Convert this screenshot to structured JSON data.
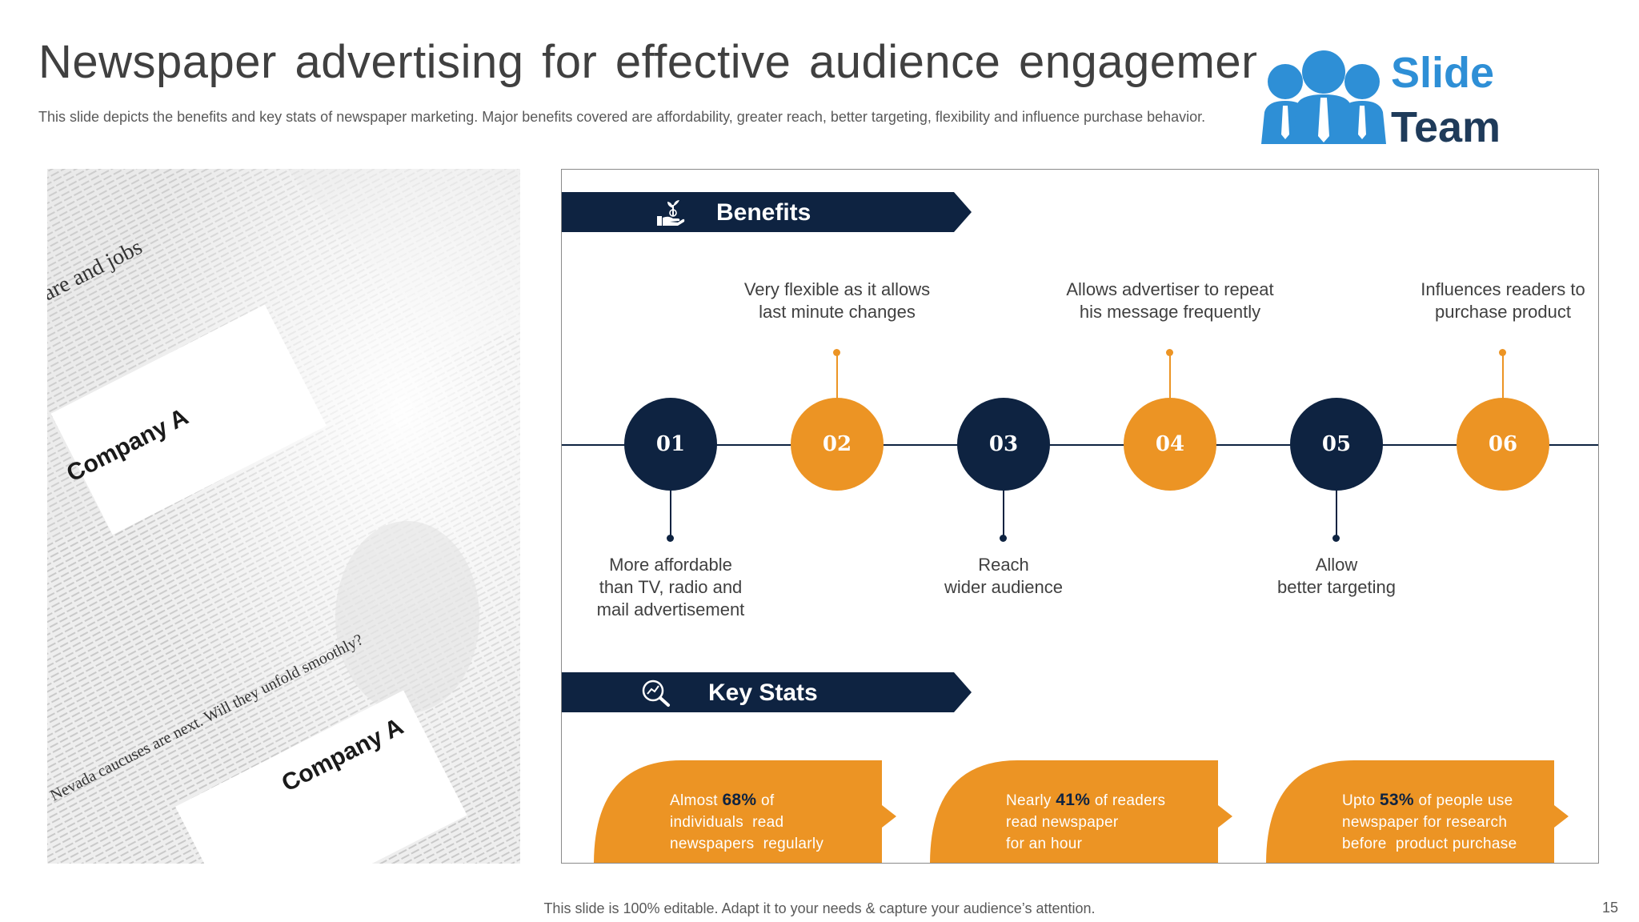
{
  "slide": {
    "title": "Newspaper advertising for effective audience engagement",
    "subtitle": "This slide depicts the benefits and key stats of newspaper marketing. Major benefits covered are affordability, greater reach, better targeting, flexibility and influence purchase behavior.",
    "footer": "This slide is 100% editable. Adapt it to your needs & capture your audience’s attention.",
    "page_number": "15"
  },
  "logo": {
    "line1": "Slide",
    "line2": "Team"
  },
  "photo": {
    "card_top_label": "Company A",
    "card_bottom_label": "Company A",
    "headline_top": "are and jobs",
    "headline_bottom": "Nevada caucuses are next. Will they unfold smoothly?"
  },
  "benefits": {
    "heading": "Benefits",
    "icon": "hand-plant-icon",
    "items": [
      {
        "number": "01",
        "text_line1": "More affordable",
        "text_line2": "than TV, radio and",
        "text_line3": "mail advertisement",
        "style": "dark"
      },
      {
        "number": "02",
        "text_line1": "Very flexible as it allows",
        "text_line2": "last minute changes",
        "style": "orange"
      },
      {
        "number": "03",
        "text_line1": "Reach",
        "text_line2": "wider audience",
        "style": "dark"
      },
      {
        "number": "04",
        "text_line1": "Allows advertiser to repeat",
        "text_line2": "his message frequently",
        "style": "orange"
      },
      {
        "number": "05",
        "text_line1": "Allow",
        "text_line2": "better targeting",
        "style": "dark"
      },
      {
        "number": "06",
        "text_line1": "Influences readers to",
        "text_line2": "purchase product",
        "style": "orange"
      }
    ]
  },
  "key_stats": {
    "heading": "Key Stats",
    "icon": "magnifier-chart-icon",
    "items": [
      {
        "prefix": "Almost ",
        "value": "68%",
        "suffix": " of",
        "line2": "individuals  read",
        "line3": "newspapers  regularly"
      },
      {
        "prefix": "Nearly ",
        "value": "41%",
        "suffix": " of readers",
        "line2": "read newspaper",
        "line3": "for an hour"
      },
      {
        "prefix": "Upto ",
        "value": "53%",
        "suffix": " of people use",
        "line2": "newspaper for research",
        "line3": "before  product purchase"
      }
    ]
  },
  "colors": {
    "navy": "#0e2341",
    "orange": "#ec9424",
    "text": "#404040",
    "logo_blue": "#2e8fd6"
  }
}
